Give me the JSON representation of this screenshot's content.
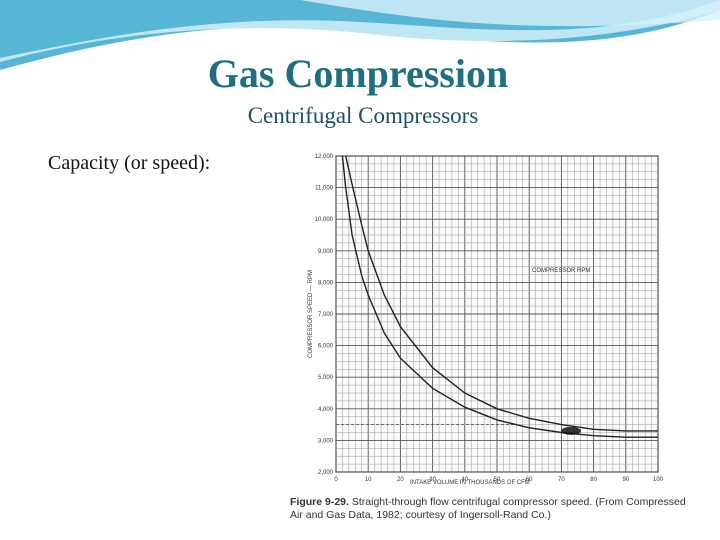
{
  "slide": {
    "title": "Gas Compression",
    "subtitle": "Centrifugal Compressors",
    "bullet": "Capacity (or speed):",
    "caption_figure": "Figure 9-29.",
    "caption_text": "Straight-through flow centrifugal compressor speed. (From Compressed Air and Gas Data, 1982; courtesy of Ingersoll-Rand Co.)",
    "colors": {
      "title": "#1f6f80",
      "banner": "#3aaed0"
    }
  },
  "chart_data": {
    "type": "line",
    "xlabel": "INTAKE VOLUME IN THOUSANDS OF CFM",
    "ylabel": "COMPRESSOR SPEED — RPM",
    "legend_label": "COMPRESSOR RPM",
    "xlim": [
      0,
      100
    ],
    "ylim": [
      2000,
      12000
    ],
    "xticks": [
      0,
      10,
      20,
      30,
      40,
      50,
      60,
      70,
      80,
      90,
      100
    ],
    "yticks": [
      2000,
      3000,
      4000,
      5000,
      6000,
      7000,
      8000,
      9000,
      10000,
      11000,
      12000
    ],
    "ytick_labels": [
      "2,000",
      "3,000",
      "4,000",
      "5,000",
      "6,000",
      "7,000",
      "8,000",
      "9,000",
      "10,000",
      "11,000",
      "12,000"
    ],
    "grid": true,
    "series": [
      {
        "x": [
          2,
          3,
          5,
          8,
          10,
          15,
          20,
          30,
          40,
          50,
          60,
          70,
          80,
          90,
          100
        ],
        "y": [
          12000,
          11000,
          9500,
          8200,
          7600,
          6400,
          5600,
          4650,
          4050,
          3650,
          3400,
          3250,
          3150,
          3100,
          3100
        ]
      },
      {
        "x": [
          3,
          5,
          8,
          10,
          15,
          20,
          30,
          40,
          50,
          60,
          70,
          80,
          90,
          100
        ],
        "y": [
          12000,
          11100,
          9800,
          9000,
          7600,
          6600,
          5300,
          4500,
          4000,
          3700,
          3500,
          3350,
          3300,
          3300
        ]
      }
    ]
  }
}
